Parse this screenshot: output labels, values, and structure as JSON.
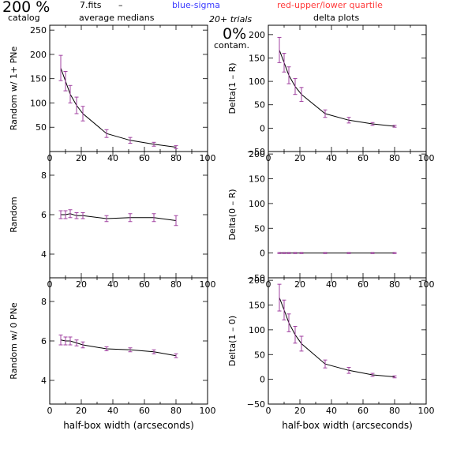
{
  "header": {
    "percent": "200 %",
    "catalog": "catalog",
    "file": "7.fits",
    "dash": "–",
    "average_medians": "average medians",
    "blue_sigma": "blue-sigma",
    "red_quartile": "red-upper/lower quartile",
    "trials": "20+ trials",
    "delta_plots": "delta plots",
    "contam_pct": "0%",
    "contam": "contam."
  },
  "colors": {
    "line": "#000000",
    "sigma": "#3a3aff",
    "quartile": "#ff3a3a",
    "errorbar": "#a040a0"
  },
  "chart_data": [
    {
      "type": "line",
      "panel": "top-left",
      "xlabel": "",
      "ylabel": "Random w/ 1+ PNe",
      "xlim": [
        0,
        100
      ],
      "ylim": [
        0,
        260
      ],
      "xticks": [
        "0",
        "20",
        "40",
        "60",
        "80",
        "100"
      ],
      "yticks": [
        "50",
        "100",
        "150",
        "200",
        "250"
      ],
      "x": [
        7,
        10,
        13,
        17,
        21,
        36,
        51,
        66,
        80
      ],
      "y": [
        172,
        145,
        118,
        95,
        78,
        37,
        23,
        15,
        9
      ],
      "err": [
        26,
        20,
        18,
        17,
        15,
        8,
        6,
        4,
        3
      ]
    },
    {
      "type": "line",
      "panel": "top-right",
      "xlabel": "",
      "ylabel": "Delta(1 – R)",
      "xlim": [
        0,
        100
      ],
      "ylim": [
        -50,
        220
      ],
      "xticks": [
        "0",
        "20",
        "40",
        "60",
        "80",
        "100"
      ],
      "yticks": [
        "−50",
        "0",
        "50",
        "100",
        "150",
        "200"
      ],
      "x": [
        7,
        10,
        13,
        17,
        21,
        36,
        51,
        66,
        80
      ],
      "y": [
        167,
        140,
        113,
        89,
        72,
        31,
        17,
        9,
        4
      ],
      "err": [
        27,
        20,
        18,
        17,
        15,
        8,
        6,
        3,
        2
      ]
    },
    {
      "type": "line",
      "panel": "middle-left",
      "xlabel": "",
      "ylabel": "Random",
      "xlim": [
        0,
        100
      ],
      "ylim": [
        2.8,
        9.2
      ],
      "xticks": [
        "0",
        "20",
        "40",
        "60",
        "80",
        "100"
      ],
      "yticks": [
        "4",
        "6",
        "8"
      ],
      "x": [
        7,
        10,
        13,
        17,
        21,
        36,
        51,
        66,
        80
      ],
      "y": [
        6.0,
        6.0,
        6.05,
        5.95,
        5.95,
        5.8,
        5.85,
        5.85,
        5.7
      ],
      "err": [
        0.2,
        0.2,
        0.2,
        0.15,
        0.15,
        0.15,
        0.2,
        0.2,
        0.25
      ]
    },
    {
      "type": "line",
      "panel": "middle-right",
      "xlabel": "",
      "ylabel": "Delta(0 – R)",
      "xlim": [
        0,
        100
      ],
      "ylim": [
        -50,
        205
      ],
      "xticks": [
        "0",
        "20",
        "40",
        "60",
        "80",
        "100"
      ],
      "yticks": [
        "−50",
        "0",
        "50",
        "100",
        "150",
        "200"
      ],
      "x": [
        7,
        10,
        13,
        17,
        21,
        36,
        51,
        66,
        80
      ],
      "y": [
        0,
        0,
        0,
        0,
        0,
        0,
        0,
        0,
        0
      ],
      "err": [
        1,
        1,
        1,
        1,
        1,
        1,
        1,
        1,
        1
      ]
    },
    {
      "type": "line",
      "panel": "bottom-left",
      "xlabel": "half-box width (arcseconds)",
      "ylabel": "Random w/ 0 PNe",
      "xlim": [
        0,
        100
      ],
      "ylim": [
        2.8,
        9.2
      ],
      "xticks": [
        "0",
        "20",
        "40",
        "60",
        "80",
        "100"
      ],
      "yticks": [
        "4",
        "6",
        "8"
      ],
      "x": [
        7,
        10,
        13,
        17,
        21,
        36,
        51,
        66,
        80
      ],
      "y": [
        6.05,
        6.0,
        6.0,
        5.9,
        5.8,
        5.6,
        5.55,
        5.45,
        5.25
      ],
      "err": [
        0.25,
        0.2,
        0.2,
        0.15,
        0.15,
        0.1,
        0.1,
        0.1,
        0.1
      ]
    },
    {
      "type": "line",
      "panel": "bottom-right",
      "xlabel": "half-box width (arcseconds)",
      "ylabel": "Delta(1 – 0)",
      "xlim": [
        0,
        100
      ],
      "ylim": [
        -50,
        205
      ],
      "xticks": [
        "0",
        "20",
        "40",
        "60",
        "80",
        "100"
      ],
      "yticks": [
        "−50",
        "0",
        "50",
        "100",
        "150",
        "200"
      ],
      "x": [
        7,
        10,
        13,
        17,
        21,
        36,
        51,
        66,
        80
      ],
      "y": [
        165,
        140,
        114,
        90,
        72,
        31,
        18,
        9,
        5
      ],
      "err": [
        27,
        20,
        18,
        17,
        15,
        8,
        6,
        3,
        2
      ]
    }
  ]
}
